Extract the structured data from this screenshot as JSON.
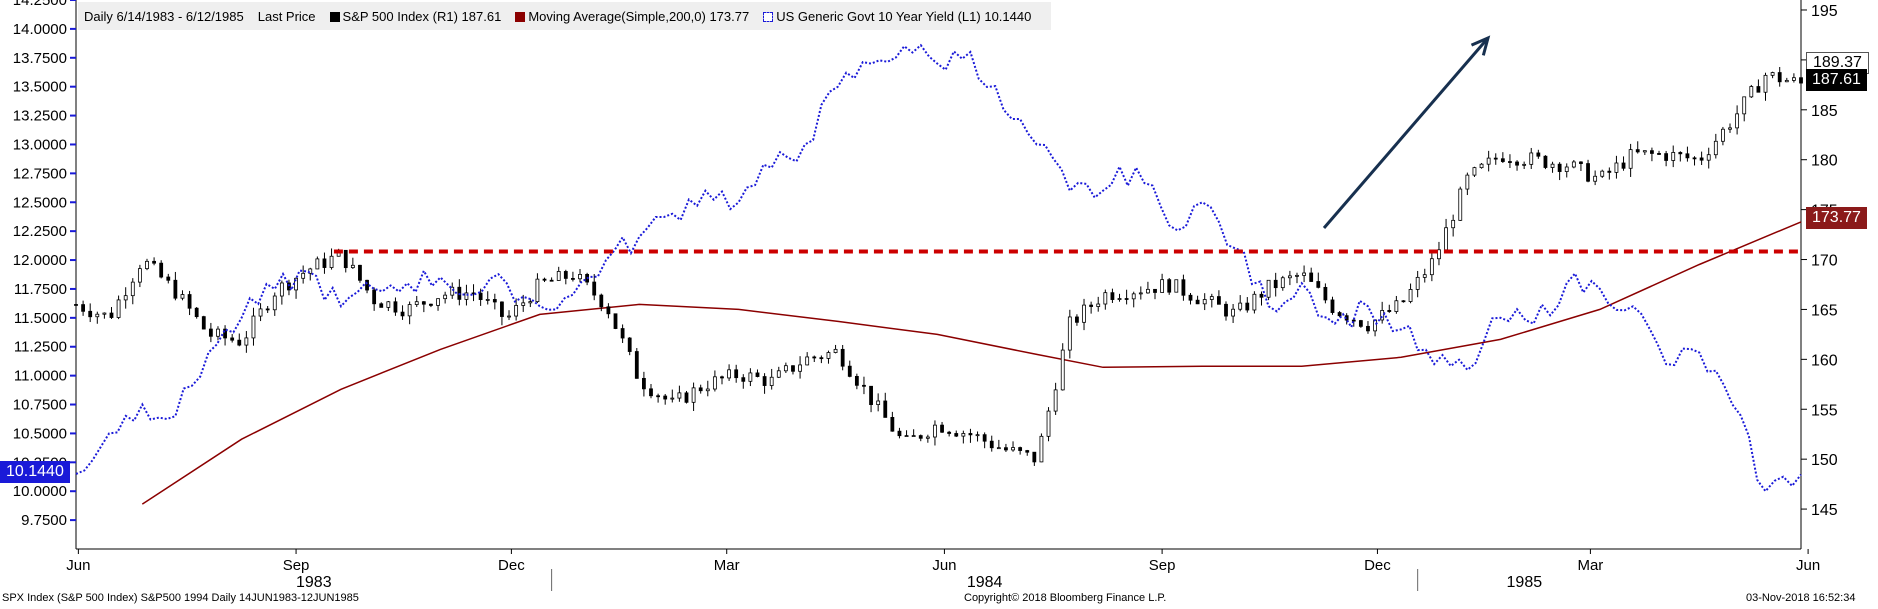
{
  "legend": {
    "range": "Daily 6/14/1983 - 6/12/1985",
    "field": "Last Price",
    "spx": "S&P 500 Index  (R1) 187.61",
    "ma": "Moving Average(Simple,200,0) 173.77",
    "yield": "US Generic Govt 10 Year Yield  (L1) 10.1440"
  },
  "footer": {
    "left": "SPX Index (S&P 500 Index) S&P500 1994  Daily 14JUN1983-12JUN1985",
    "center": "Copyright© 2018 Bloomberg Finance L.P.",
    "right": "03-Nov-2018 16:52:34"
  },
  "tags": {
    "yield_last": "10.1440",
    "spx_last": "187.61",
    "spx_high": "189.37",
    "ma_last": "173.77"
  },
  "colors": {
    "spx": "#000000",
    "ma": "#8b0000",
    "yield": "#1a1ad8",
    "resistance": "#cc0000",
    "arrow": "#17304f",
    "axis_left": "#1a1ad8"
  },
  "chart_data": {
    "type": "line",
    "title": "",
    "x_range": [
      "1983-06-14",
      "1985-06-12"
    ],
    "x_ticks": [
      "Jun",
      "Sep",
      "Dec",
      "Mar",
      "Jun",
      "Sep",
      "Dec",
      "Mar",
      "Jun"
    ],
    "year_labels": [
      "1983",
      "1984",
      "1985"
    ],
    "y_left": {
      "label": "US Generic Govt 10 Year Yield",
      "range": [
        9.5,
        14.25
      ],
      "ticks": [
        "14.2500",
        "14.0000",
        "13.7500",
        "13.5000",
        "13.2500",
        "13.0000",
        "12.7500",
        "12.5000",
        "12.2500",
        "12.0000",
        "11.7500",
        "11.5000",
        "11.2500",
        "11.0000",
        "10.7500",
        "10.5000",
        "10.2500",
        "10.0000",
        "9.7500"
      ]
    },
    "y_right": {
      "label": "S&P 500 Index",
      "range": [
        141,
        196
      ],
      "ticks": [
        "195",
        "190",
        "185",
        "180",
        "175",
        "170",
        "165",
        "160",
        "155",
        "150",
        "145"
      ]
    },
    "resistance_level": 170.8,
    "series": [
      {
        "name": "S&P 500 Index",
        "style": "candlestick",
        "axis": "right",
        "x": [
          "1983-06-14",
          "1983-06-28",
          "1983-07-12",
          "1983-07-26",
          "1983-08-09",
          "1983-08-23",
          "1983-09-06",
          "1983-09-20",
          "1983-10-04",
          "1983-10-18",
          "1983-11-01",
          "1983-11-15",
          "1983-11-29",
          "1983-12-13",
          "1983-12-27",
          "1984-01-10",
          "1984-01-24",
          "1984-02-07",
          "1984-02-21",
          "1984-03-06",
          "1984-03-20",
          "1984-04-03",
          "1984-04-17",
          "1984-05-01",
          "1984-05-15",
          "1984-05-29",
          "1984-06-12",
          "1984-06-26",
          "1984-07-10",
          "1984-07-24",
          "1984-08-07",
          "1984-08-21",
          "1984-09-04",
          "1984-09-18",
          "1984-10-02",
          "1984-10-16",
          "1984-10-30",
          "1984-11-13",
          "1984-11-27",
          "1984-12-11",
          "1984-12-25",
          "1985-01-08",
          "1985-01-22",
          "1985-02-05",
          "1985-02-19",
          "1985-03-05",
          "1985-03-19",
          "1985-04-02",
          "1985-04-16",
          "1985-04-30",
          "1985-05-14",
          "1985-05-28",
          "1985-06-12"
        ],
        "values": [
          165.5,
          164.2,
          170.0,
          166.8,
          162.5,
          161.8,
          166.8,
          169.0,
          170.5,
          166.0,
          165.0,
          166.5,
          166.7,
          164.0,
          167.5,
          168.5,
          165.5,
          158.0,
          155.5,
          157.5,
          158.5,
          157.8,
          160.0,
          160.8,
          156.0,
          151.5,
          153.5,
          152.5,
          151.0,
          150.0,
          163.5,
          166.5,
          167.0,
          167.5,
          166.0,
          164.5,
          167.2,
          168.5,
          165.0,
          163.5,
          165.5,
          170.0,
          178.0,
          180.5,
          180.0,
          179.5,
          178.0,
          180.5,
          180.5,
          180.0,
          184.0,
          188.5,
          187.61
        ]
      },
      {
        "name": "Moving Average(Simple,200,0)",
        "axis": "right",
        "x": [
          "1983-07-12",
          "1983-08-23",
          "1983-10-04",
          "1983-11-15",
          "1983-12-27",
          "1984-02-07",
          "1984-03-20",
          "1984-05-01",
          "1984-06-12",
          "1984-07-24",
          "1984-08-21",
          "1984-10-02",
          "1984-11-13",
          "1984-12-25",
          "1985-02-05",
          "1985-03-19",
          "1985-04-30",
          "1985-06-12"
        ],
        "values": [
          145.5,
          152.0,
          157.0,
          161.0,
          164.5,
          165.5,
          165.0,
          163.8,
          162.5,
          160.5,
          159.2,
          159.3,
          159.3,
          160.2,
          162.0,
          165.0,
          169.5,
          173.77
        ]
      },
      {
        "name": "US Generic Govt 10 Year Yield",
        "axis": "left",
        "x": [
          "1983-06-14",
          "1983-06-28",
          "1983-07-12",
          "1983-07-26",
          "1983-08-09",
          "1983-08-23",
          "1983-09-06",
          "1983-09-20",
          "1983-10-04",
          "1983-10-18",
          "1983-11-01",
          "1983-11-15",
          "1983-11-29",
          "1983-12-13",
          "1983-12-27",
          "1984-01-10",
          "1984-01-24",
          "1984-02-07",
          "1984-02-21",
          "1984-03-06",
          "1984-03-20",
          "1984-04-03",
          "1984-04-17",
          "1984-05-01",
          "1984-05-15",
          "1984-05-29",
          "1984-06-12",
          "1984-06-26",
          "1984-07-10",
          "1984-07-24",
          "1984-08-07",
          "1984-08-21",
          "1984-09-04",
          "1984-09-18",
          "1984-10-02",
          "1984-10-16",
          "1984-10-30",
          "1984-11-13",
          "1984-11-27",
          "1984-12-11",
          "1984-12-25",
          "1985-01-08",
          "1985-01-22",
          "1985-02-05",
          "1985-02-19",
          "1985-03-05",
          "1985-03-19",
          "1985-04-02",
          "1985-04-16",
          "1985-04-30",
          "1985-05-14",
          "1985-05-28",
          "1985-06-12"
        ],
        "values": [
          10.15,
          10.5,
          10.75,
          10.65,
          11.2,
          11.5,
          11.75,
          11.9,
          11.6,
          11.75,
          11.8,
          11.85,
          11.7,
          11.8,
          11.6,
          11.7,
          12.0,
          12.2,
          12.4,
          12.6,
          12.5,
          12.8,
          13.0,
          13.5,
          13.7,
          13.85,
          13.7,
          13.8,
          13.3,
          13.0,
          12.6,
          12.6,
          12.8,
          12.3,
          12.5,
          12.1,
          11.6,
          11.8,
          11.45,
          11.6,
          11.4,
          11.1,
          11.05,
          11.5,
          11.45,
          11.8,
          11.75,
          11.6,
          11.1,
          11.2,
          10.75,
          10.0,
          10.144
        ]
      }
    ]
  }
}
